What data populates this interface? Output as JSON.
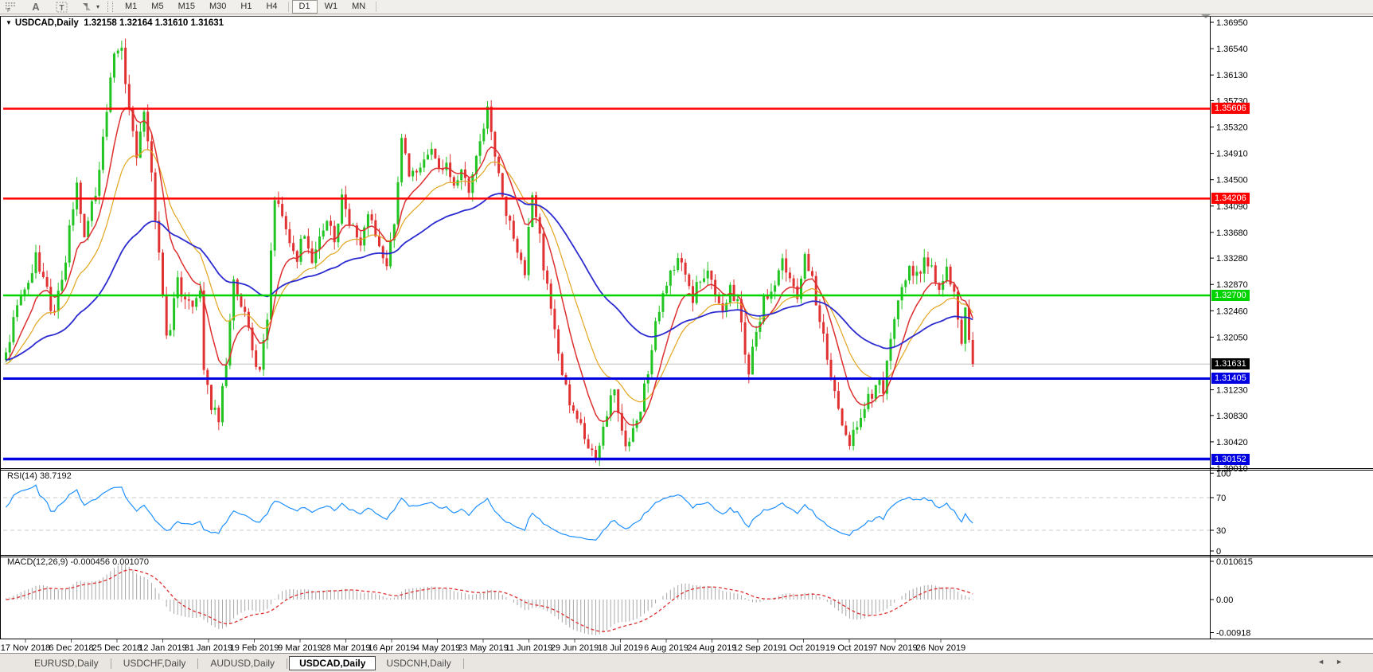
{
  "toolbar": {
    "timeframes": [
      "M1",
      "M5",
      "M15",
      "M30",
      "H1",
      "H4",
      "D1",
      "W1",
      "MN"
    ],
    "active_timeframe": "D1",
    "icon_a": "A",
    "icon_t": "T",
    "icon_f": "F",
    "dropdown_caret": "▾"
  },
  "chart": {
    "collapse_arrow": "▼",
    "symbol_period": "USDCAD,Daily",
    "quotes_text": "1.32158 1.32164 1.31610 1.31631"
  },
  "indicators": {
    "rsi_label": "RSI(14)",
    "rsi_value": "38.7192",
    "macd_label": "MACD(12,26,9)",
    "macd_values": "-0.000456 0.001070"
  },
  "tabs": {
    "items": [
      "EURUSD,Daily",
      "USDCHF,Daily",
      "AUDUSD,Daily",
      "USDCAD,Daily",
      "USDCNH,Daily"
    ],
    "active": "USDCAD,Daily",
    "scroll_left": "◄",
    "scroll_right": "►"
  },
  "chart_data": {
    "type": "candlestick",
    "symbol": "USDCAD",
    "timeframe": "Daily",
    "ohlc_display": {
      "open": "1.32158",
      "high": "1.32164",
      "low": "1.31610",
      "close": "1.31631"
    },
    "bars": 260,
    "ylim": [
      1.3001,
      1.37037
    ],
    "colors": {
      "up": "#21c421",
      "down": "#e03232"
    },
    "y_ticks": [
      "1.36950",
      "1.36540",
      "1.36130",
      "1.35730",
      "1.35320",
      "1.34910",
      "1.34500",
      "1.34090",
      "1.33680",
      "1.33280",
      "1.32870",
      "1.32460",
      "1.32050",
      "1.31230",
      "1.30830",
      "1.30420",
      "1.30010"
    ],
    "x_labels": [
      "17 Nov 2018",
      "6 Dec 2018",
      "25 Dec 2018",
      "12 Jan 2019",
      "31 Jan 2019",
      "19 Feb 2019",
      "9 Mar 2019",
      "28 Mar 2019",
      "16 Apr 2019",
      "4 May 2019",
      "23 May 2019",
      "11 Jun 2019",
      "29 Jun 2019",
      "18 Jul 2019",
      "6 Aug 2019",
      "24 Aug 2019",
      "12 Sep 2019",
      "1 Oct 2019",
      "19 Oct 2019",
      "7 Nov 2019",
      "26 Nov 2019"
    ],
    "levels": [
      {
        "label": "1.35606",
        "price": 1.35606,
        "color": "#ff0000",
        "width": 2.5
      },
      {
        "label": "1.34206",
        "price": 1.34206,
        "color": "#ff0000",
        "width": 2.5
      },
      {
        "label": "1.32700",
        "price": 1.327,
        "color": "#00d300",
        "width": 2.5
      },
      {
        "label": "1.31405",
        "price": 1.31405,
        "color": "#0000e0",
        "width": 3
      },
      {
        "label": "1.30152",
        "price": 1.30152,
        "color": "#0000e0",
        "width": 3.5
      }
    ],
    "current": {
      "label": "1.31631",
      "price": 1.31631,
      "line_color": "#c0c0c0",
      "tag_bg": "#000000"
    },
    "moving_averages": [
      {
        "period": 21,
        "color": "#e2a51e",
        "width": 1.2
      },
      {
        "period": 10,
        "color": "#dd2f2f",
        "width": 1.5
      },
      {
        "period": 55,
        "color": "#2b2bd0",
        "width": 1.8
      }
    ],
    "rsi": {
      "period": 14,
      "color": "#1e90ff",
      "levels": [
        70,
        30
      ],
      "axis_ticks": [
        "100",
        "70",
        "30",
        "0"
      ],
      "value": 38.7192
    },
    "macd": {
      "fast": 12,
      "slow": 26,
      "signal": 9,
      "hist_color": "#a6a6a6",
      "signal_color": "#dd2f2f",
      "axis_ticks": [
        {
          "label": "0.010615",
          "value": 0.010615
        },
        {
          "label": "0.00",
          "value": 0
        },
        {
          "label": "-0.00918",
          "value": -0.00918
        }
      ],
      "values": [
        -0.000456,
        0.00107
      ]
    },
    "price_waypoints": [
      [
        0,
        1.318
      ],
      [
        3,
        1.325
      ],
      [
        6,
        1.33
      ],
      [
        8,
        1.3332
      ],
      [
        10,
        1.329
      ],
      [
        13,
        1.3235
      ],
      [
        16,
        1.333
      ],
      [
        19,
        1.3445
      ],
      [
        21,
        1.3372
      ],
      [
        24,
        1.343
      ],
      [
        26,
        1.352
      ],
      [
        29,
        1.364
      ],
      [
        31,
        1.3656
      ],
      [
        33,
        1.355
      ],
      [
        35,
        1.3482
      ],
      [
        37,
        1.3558
      ],
      [
        39,
        1.345
      ],
      [
        41,
        1.333
      ],
      [
        43,
        1.3196
      ],
      [
        46,
        1.3288
      ],
      [
        49,
        1.3252
      ],
      [
        52,
        1.3278
      ],
      [
        53,
        1.316
      ],
      [
        55,
        1.3096
      ],
      [
        57,
        1.3072
      ],
      [
        59,
        1.317
      ],
      [
        61,
        1.329
      ],
      [
        63,
        1.3255
      ],
      [
        65,
        1.3222
      ],
      [
        66,
        1.3186
      ],
      [
        68,
        1.3148
      ],
      [
        70,
        1.323
      ],
      [
        72,
        1.3428
      ],
      [
        74,
        1.34
      ],
      [
        76,
        1.3356
      ],
      [
        78,
        1.333
      ],
      [
        80,
        1.3374
      ],
      [
        82,
        1.333
      ],
      [
        84,
        1.336
      ],
      [
        86,
        1.3388
      ],
      [
        88,
        1.3356
      ],
      [
        90,
        1.3418
      ],
      [
        92,
        1.338
      ],
      [
        95,
        1.3342
      ],
      [
        97,
        1.339
      ],
      [
        100,
        1.3346
      ],
      [
        102,
        1.332
      ],
      [
        104,
        1.339
      ],
      [
        106,
        1.3518
      ],
      [
        108,
        1.3466
      ],
      [
        110,
        1.345
      ],
      [
        112,
        1.3476
      ],
      [
        114,
        1.349
      ],
      [
        116,
        1.3462
      ],
      [
        118,
        1.348
      ],
      [
        120,
        1.3446
      ],
      [
        122,
        1.3466
      ],
      [
        124,
        1.3436
      ],
      [
        126,
        1.349
      ],
      [
        128,
        1.3534
      ],
      [
        129,
        1.3556
      ],
      [
        131,
        1.348
      ],
      [
        133,
        1.343
      ],
      [
        135,
        1.338
      ],
      [
        137,
        1.3342
      ],
      [
        139,
        1.3306
      ],
      [
        141,
        1.3424
      ],
      [
        143,
        1.336
      ],
      [
        145,
        1.328
      ],
      [
        147,
        1.321
      ],
      [
        149,
        1.315
      ],
      [
        151,
        1.311
      ],
      [
        153,
        1.3076
      ],
      [
        155,
        1.305
      ],
      [
        157,
        1.303
      ],
      [
        158,
        1.302
      ],
      [
        160,
        1.306
      ],
      [
        162,
        1.311
      ],
      [
        163,
        1.3126
      ],
      [
        165,
        1.3062
      ],
      [
        166,
        1.3038
      ],
      [
        168,
        1.3058
      ],
      [
        170,
        1.3096
      ],
      [
        172,
        1.315
      ],
      [
        174,
        1.322
      ],
      [
        176,
        1.327
      ],
      [
        178,
        1.3306
      ],
      [
        180,
        1.333
      ],
      [
        182,
        1.33
      ],
      [
        184,
        1.3266
      ],
      [
        186,
        1.3296
      ],
      [
        188,
        1.332
      ],
      [
        190,
        1.327
      ],
      [
        192,
        1.325
      ],
      [
        194,
        1.329
      ],
      [
        196,
        1.3256
      ],
      [
        198,
        1.318
      ],
      [
        199,
        1.3156
      ],
      [
        201,
        1.321
      ],
      [
        203,
        1.3266
      ],
      [
        206,
        1.329
      ],
      [
        208,
        1.3326
      ],
      [
        210,
        1.33
      ],
      [
        212,
        1.327
      ],
      [
        214,
        1.3334
      ],
      [
        216,
        1.329
      ],
      [
        218,
        1.323
      ],
      [
        220,
        1.3176
      ],
      [
        222,
        1.3116
      ],
      [
        224,
        1.3068
      ],
      [
        226,
        1.3046
      ],
      [
        228,
        1.3062
      ],
      [
        230,
        1.309
      ],
      [
        232,
        1.312
      ],
      [
        234,
        1.3146
      ],
      [
        235,
        1.3128
      ],
      [
        236,
        1.3166
      ],
      [
        238,
        1.3226
      ],
      [
        240,
        1.329
      ],
      [
        242,
        1.332
      ],
      [
        244,
        1.33
      ],
      [
        246,
        1.3322
      ],
      [
        248,
        1.331
      ],
      [
        250,
        1.329
      ],
      [
        252,
        1.3308
      ],
      [
        254,
        1.327
      ],
      [
        255,
        1.3226
      ],
      [
        256,
        1.3206
      ],
      [
        257,
        1.3246
      ],
      [
        258,
        1.3192
      ],
      [
        259,
        1.31631
      ]
    ]
  }
}
